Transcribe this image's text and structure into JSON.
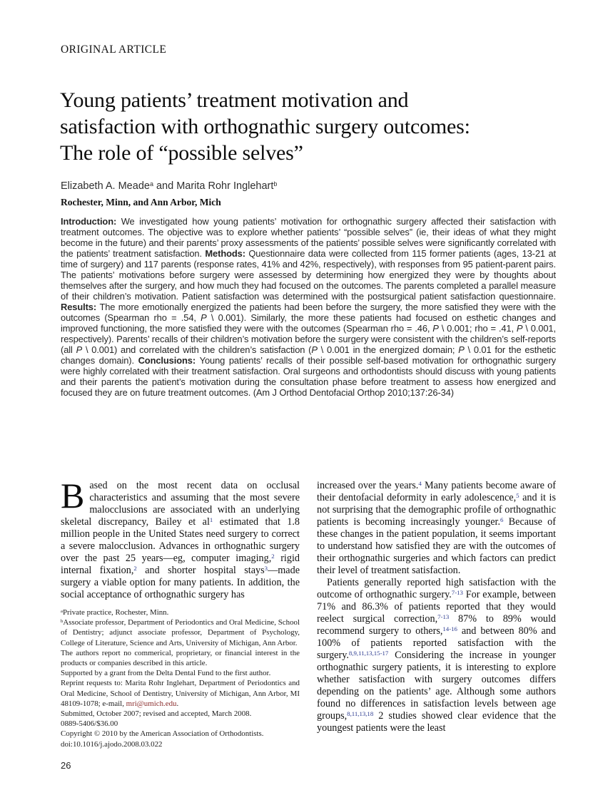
{
  "colors": {
    "reference_blue": "#2b3a8f",
    "email_red": "#8b2e2e"
  },
  "header": {
    "section_label": "ORIGINAL ARTICLE"
  },
  "article": {
    "title_lines": [
      "Young patients’ treatment motivation and",
      "satisfaction with orthognathic surgery outcomes:",
      "The role of “possible selves”"
    ],
    "authors": [
      {
        "t": "Elizabeth A. Meade"
      },
      {
        "t": "a",
        "sup": true
      },
      {
        "t": " and Marita Rohr Inglehart"
      },
      {
        "t": "b",
        "sup": true
      }
    ],
    "affiliation_line": "Rochester, Minn, and Ann Arbor, Mich",
    "abstract": [
      {
        "t": "Introduction: ",
        "b": true
      },
      {
        "t": "We investigated how young patients’ motivation for orthognathic surgery affected their satisfaction with treatment outcomes. The objective was to explore whether patients’ “possible selves” (ie, their ideas of what they might become in the future) and their parents’ proxy assessments of the patients’ possible selves were significantly correlated with the patients’ treatment satisfaction. "
      },
      {
        "t": "Methods: ",
        "b": true
      },
      {
        "t": "Questionnaire data were collected from 115 former patients (ages, 13-21 at time of surgery) and 117 parents (response rates, 41% and 42%, respectively), with responses from 95 patient-parent pairs. The patients’ motivations before surgery were assessed by determining how energized they were by thoughts about themselves after the surgery, and how much they had focused on the outcomes. The parents completed a parallel measure of their children’s motivation. Patient satisfaction was determined with the postsurgical patient satisfaction questionnaire. "
      },
      {
        "t": "Results: ",
        "b": true
      },
      {
        "t": "The more emotionally energized the patients had been before the surgery, the more satisfied they were with the outcomes (Spearman rho = .54, "
      },
      {
        "t": "P",
        "i": true
      },
      {
        "t": " \\ 0.001). Similarly, the more these patients had focused on esthetic changes and improved functioning, the more satisfied they were with the outcomes (Spearman rho = .46, "
      },
      {
        "t": "P",
        "i": true
      },
      {
        "t": " \\ 0.001; rho = .41, "
      },
      {
        "t": "P",
        "i": true
      },
      {
        "t": " \\ 0.001, respectively). Parents’ recalls of their children’s motivation before the surgery were consistent with the children’s self-reports (all "
      },
      {
        "t": "P",
        "i": true
      },
      {
        "t": " \\ 0.001) and correlated with the children’s satisfaction ("
      },
      {
        "t": "P",
        "i": true
      },
      {
        "t": " \\ 0.001 in the energized domain; "
      },
      {
        "t": "P",
        "i": true
      },
      {
        "t": " \\ 0.01 for the esthetic changes domain). "
      },
      {
        "t": "Conclusions: ",
        "b": true
      },
      {
        "t": "Young patients’ recalls of their possible self-based motivation for orthognathic surgery were highly correlated with their treatment satisfaction. Oral surgeons and orthodontists should discuss with young patients and their parents the patient’s motivation during the consultation phase before treatment to assess how energized and focused they are on future treatment outcomes. (Am J Orthod Dentofacial Orthop 2010;137:26-34)"
      }
    ]
  },
  "body": {
    "left_column": {
      "dropcap": "B",
      "paragraph": [
        {
          "t": "ased on the most recent data on occlusal characteristics and assuming that the most severe malocclusions are associated with an underlying skeletal discrepancy, Bailey et al"
        },
        {
          "t": "1",
          "sup": true,
          "ref": true
        },
        {
          "t": " estimated that 1.8 million people in the United States need surgery to correct a severe malocclusion. Advances in orthognathic surgery over the past 25 years—eg, computer imaging,"
        },
        {
          "t": "2",
          "sup": true,
          "ref": true
        },
        {
          "t": " rigid internal fixation,"
        },
        {
          "t": "2",
          "sup": true,
          "ref": true
        },
        {
          "t": " and shorter hospital stays"
        },
        {
          "t": "3",
          "sup": true,
          "ref": true
        },
        {
          "t": "—made surgery a viable option for many patients. In addition, the social acceptance of orthognathic surgery has"
        }
      ]
    },
    "right_column": {
      "paragraphs": [
        [
          {
            "t": "increased over the years."
          },
          {
            "t": "4",
            "sup": true,
            "ref": true
          },
          {
            "t": " Many patients become aware of their dentofacial deformity in early adolescence,"
          },
          {
            "t": "5",
            "sup": true,
            "ref": true
          },
          {
            "t": " and it is not surprising that the demographic profile of orthognathic patients is becoming increasingly younger."
          },
          {
            "t": "6",
            "sup": true,
            "ref": true
          },
          {
            "t": " Because of these changes in the patient population, it seems important to understand how satisfied they are with the outcomes of their orthognathic surgeries and which factors can predict their level of treatment satisfaction."
          }
        ],
        [
          {
            "t": "Patients generally reported high satisfaction with the outcome of orthognathic surgery."
          },
          {
            "t": "7-13",
            "sup": true,
            "ref": true
          },
          {
            "t": " For example, between 71% and 86.3% of patients reported that they would reelect surgical correction,"
          },
          {
            "t": "7-13",
            "sup": true,
            "ref": true
          },
          {
            "t": " 87% to 89% would recommend surgery to others,"
          },
          {
            "t": "14-16",
            "sup": true,
            "ref": true
          },
          {
            "t": " and between 80% and 100% of patients reported satisfaction with the surgery."
          },
          {
            "t": "8,9,11,13,15-17",
            "sup": true,
            "ref": true
          },
          {
            "t": " Considering the increase in younger orthognathic surgery patients, it is interesting to explore whether satisfaction with surgery outcomes differs depending on the patients’ age. Although some authors found no differences in satisfaction levels between age groups,"
          },
          {
            "t": "8,11,13,18",
            "sup": true,
            "ref": true
          },
          {
            "t": " 2 studies showed clear evidence that the youngest patients were the least"
          }
        ]
      ]
    }
  },
  "footnotes": [
    [
      {
        "t": "a",
        "sup": true
      },
      {
        "t": "Private practice, Rochester, Minn."
      }
    ],
    [
      {
        "t": "b",
        "sup": true
      },
      {
        "t": "Associate professor, Department of Periodontics and Oral Medicine, School of Dentistry; adjunct associate professor, Department of Psychology, College of Literature, Science and Arts, University of Michigan, Ann Arbor."
      }
    ],
    [
      {
        "t": "The authors report no commerical, proprietary, or financial interest in the products or companies described in this article."
      }
    ],
    [
      {
        "t": "Supported by a grant from the Delta Dental Fund to the first author."
      }
    ],
    [
      {
        "t": "Reprint requests to: Marita Rohr Inglehart, Department of Periodontics and Oral Medicine, School of Dentistry, University of Michigan, Ann Arbor, MI 48109-1078; e-mail, "
      },
      {
        "t": "mri@umich.edu",
        "link": true
      },
      {
        "t": "."
      }
    ],
    [
      {
        "t": "Submitted, October 2007; revised and accepted, March 2008."
      }
    ],
    [
      {
        "t": "0889-5406/$36.00"
      }
    ],
    [
      {
        "t": "Copyright © 2010 by the American Association of Orthodontists."
      }
    ],
    [
      {
        "t": "doi:10.1016/j.ajodo.2008.03.022"
      }
    ]
  ],
  "footer": {
    "page_number": "26"
  }
}
